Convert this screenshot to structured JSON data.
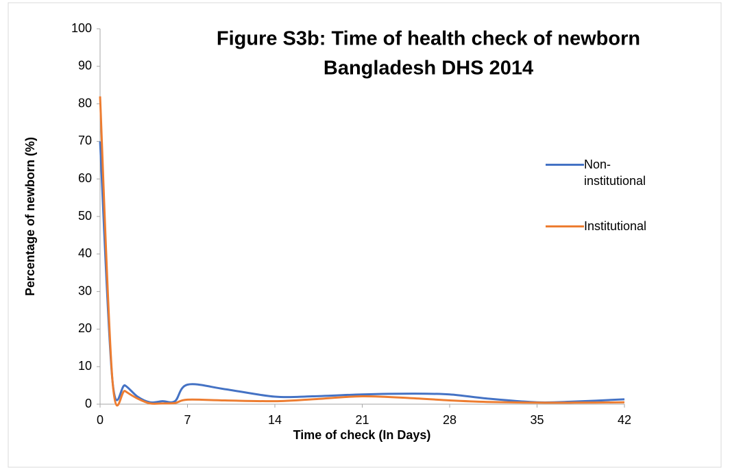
{
  "chart_data": {
    "type": "line",
    "title": "Figure S3b: Time of health check of newborn",
    "subtitle": "Bangladesh DHS 2014",
    "x_label": "Time of check (In Days)",
    "y_label": "Percentage of newborn (%)",
    "x": [
      0,
      1,
      2,
      3,
      4,
      5,
      6,
      7,
      10,
      14,
      17,
      21,
      25,
      28,
      31,
      35,
      38,
      42
    ],
    "series": [
      {
        "name": "Non-institutional",
        "color": "#4472c4",
        "values": [
          70,
          6,
          5,
          2,
          0.5,
          0.8,
          0.8,
          5.2,
          4,
          2,
          2.1,
          2.6,
          2.8,
          2.6,
          1.5,
          0.5,
          0.7,
          1.3
        ]
      },
      {
        "name": "Institutional",
        "color": "#ed7d31",
        "values": [
          82,
          6,
          3.5,
          1.5,
          0.2,
          0.2,
          0.3,
          1.2,
          1,
          0.8,
          1.3,
          2.1,
          1.6,
          1,
          0.6,
          0.4,
          0.4,
          0.5
        ]
      }
    ],
    "xlim": [
      0,
      42
    ],
    "xticks": [
      0,
      7,
      14,
      21,
      28,
      35,
      42
    ],
    "ylim": [
      0,
      100
    ],
    "yticks": [
      0,
      10,
      20,
      30,
      40,
      50,
      60,
      70,
      80,
      90,
      100
    ],
    "grid": false,
    "legend": "right"
  }
}
